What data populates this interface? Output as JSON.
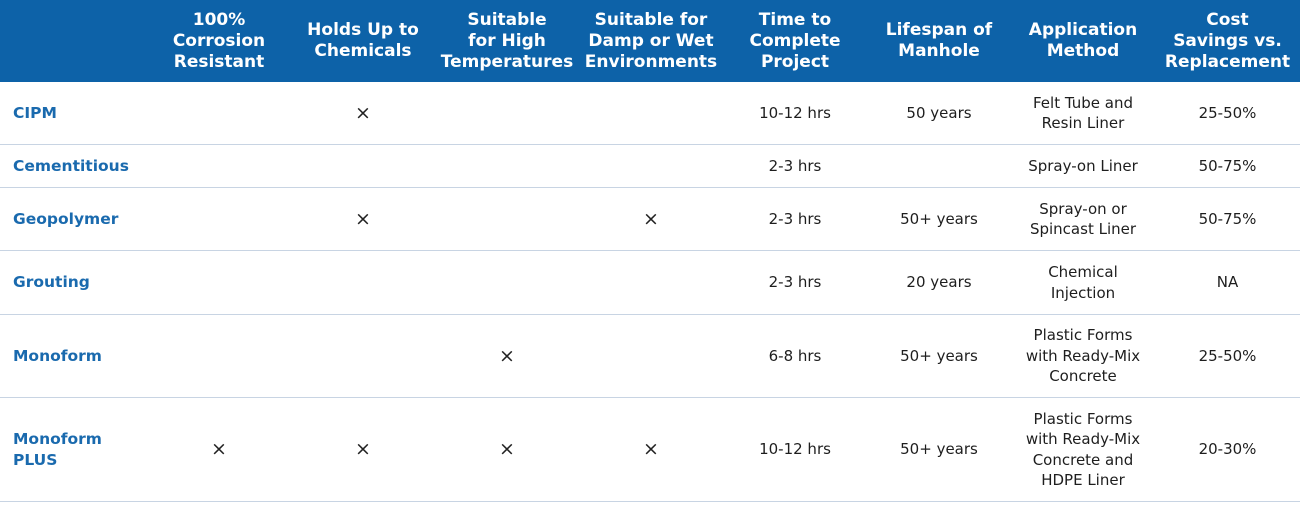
{
  "headers": [
    "",
    "100%\nCorrosion\nResistant",
    "Holds Up to\nChemicals",
    "Suitable\nfor High\nTemperatures",
    "Suitable for\nDamp or Wet\nEnvironments",
    "Time to\nComplete\nProject",
    "Lifespan of\nManhole",
    "Application\nMethod",
    "Cost\nSavings vs.\nReplacement"
  ],
  "check_symbol": "×",
  "rows": [
    {
      "name": "CIPM",
      "cells": [
        "",
        "×",
        "",
        "",
        "10-12 hrs",
        "50 years",
        "Felt Tube and\nResin Liner",
        "25-50%"
      ]
    },
    {
      "name": "Cementitious",
      "cells": [
        "",
        "",
        "",
        "",
        "2-3 hrs",
        "",
        "Spray-on Liner",
        "50-75%"
      ]
    },
    {
      "name": "Geopolymer",
      "cells": [
        "",
        "×",
        "",
        "×",
        "2-3 hrs",
        "50+ years",
        "Spray-on or\nSpincast Liner",
        "50-75%"
      ]
    },
    {
      "name": "Grouting",
      "cells": [
        "",
        "",
        "",
        "",
        "2-3 hrs",
        "20 years",
        "Chemical\nInjection",
        "NA"
      ]
    },
    {
      "name": "Monoform",
      "cells": [
        "",
        "",
        "×",
        "",
        "6-8 hrs",
        "50+ years",
        "Plastic Forms\nwith Ready-Mix\nConcrete",
        "25-50%"
      ]
    },
    {
      "name": "Monoform\nPLUS",
      "cells": [
        "×",
        "×",
        "×",
        "×",
        "10-12 hrs",
        "50+ years",
        "Plastic Forms\nwith Ready-Mix\nConcrete and\nHDPE Liner",
        "20-30%"
      ]
    }
  ]
}
